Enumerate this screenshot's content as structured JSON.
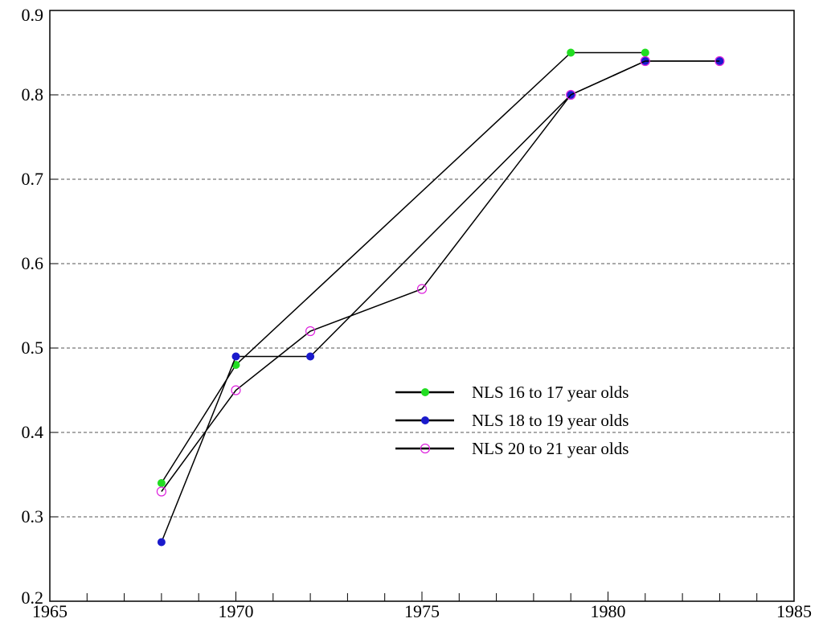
{
  "chart_data": {
    "type": "line",
    "title": "",
    "xlabel": "",
    "ylabel": "",
    "xlim": [
      1965,
      1985
    ],
    "ylim": [
      0.2,
      0.9
    ],
    "x_ticks": [
      1965,
      1970,
      1975,
      1980,
      1985
    ],
    "y_ticks": [
      0.2,
      0.3,
      0.4,
      0.5,
      0.6,
      0.7,
      0.8,
      0.9
    ],
    "x_tick_labels": [
      "1965",
      "1970",
      "1975",
      "1980",
      "1985"
    ],
    "y_tick_labels": [
      "0.2",
      "0.3",
      "0.4",
      "0.5",
      "0.6",
      "0.7",
      "0.8",
      "0.9"
    ],
    "grid": "horizontal dashed",
    "legend_position": "center-right",
    "series": [
      {
        "name": "NLS 16 to 17 year olds",
        "marker": "filled-circle",
        "color": "#22dd22",
        "x": [
          1968,
          1970,
          1979,
          1981
        ],
        "y": [
          0.34,
          0.48,
          0.85,
          0.85
        ]
      },
      {
        "name": "NLS 18 to 19 year olds",
        "marker": "filled-circle",
        "color": "#1a1acc",
        "x": [
          1968,
          1970,
          1972,
          1979,
          1981,
          1983
        ],
        "y": [
          0.27,
          0.49,
          0.49,
          0.8,
          0.84,
          0.84
        ]
      },
      {
        "name": "NLS 20 to 21 year olds",
        "marker": "open-circle",
        "color": "#dd22dd",
        "x": [
          1968,
          1970,
          1972,
          1975,
          1979,
          1981,
          1983
        ],
        "y": [
          0.33,
          0.45,
          0.52,
          0.57,
          0.8,
          0.84,
          0.84
        ]
      }
    ]
  }
}
